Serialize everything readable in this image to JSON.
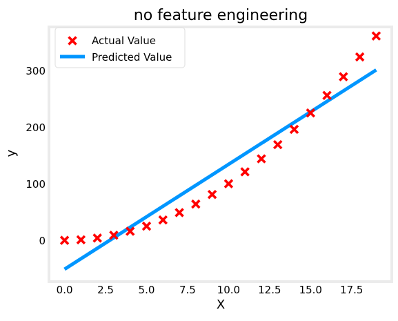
{
  "chart_data": {
    "type": "scatter",
    "title": "no feature engineering",
    "xlabel": "X",
    "ylabel": "y",
    "xlim": [
      -0.95,
      19.95
    ],
    "ylim": [
      -72,
      378
    ],
    "xticks": [
      0.0,
      2.5,
      5.0,
      7.5,
      10.0,
      12.5,
      15.0,
      17.5
    ],
    "xtick_labels": [
      "0.0",
      "2.5",
      "5.0",
      "7.5",
      "10.0",
      "12.5",
      "15.0",
      "17.5"
    ],
    "yticks": [
      0,
      100,
      200,
      300
    ],
    "ytick_labels": [
      "0",
      "100",
      "200",
      "300"
    ],
    "grid": false,
    "legend_position": "top-left",
    "series": [
      {
        "name": "Actual Value",
        "kind": "scatter",
        "marker": "x",
        "color": "#ff0000",
        "x": [
          0,
          1,
          2,
          3,
          4,
          5,
          6,
          7,
          8,
          9,
          10,
          11,
          12,
          13,
          14,
          15,
          16,
          17,
          18,
          19
        ],
        "y": [
          1,
          2,
          5,
          10,
          17,
          26,
          37,
          50,
          65,
          82,
          101,
          122,
          145,
          170,
          197,
          226,
          257,
          290,
          325,
          362
        ]
      },
      {
        "name": "Predicted Value",
        "kind": "line",
        "color": "#0096ff",
        "x": [
          0,
          19
        ],
        "y": [
          -50,
          302
        ]
      }
    ]
  }
}
